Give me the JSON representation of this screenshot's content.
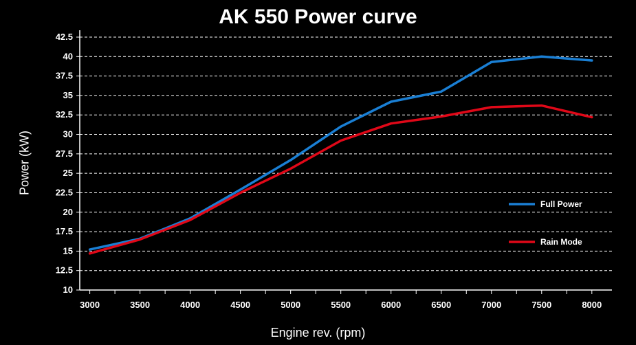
{
  "chart_data": {
    "type": "line",
    "title": "AK 550 Power curve",
    "xlabel": "Engine rev. (rpm)",
    "ylabel": "Power (kW)",
    "x": [
      3000,
      3500,
      4000,
      4500,
      5000,
      5500,
      6000,
      6500,
      7000,
      7500,
      8000
    ],
    "x_ticks": [
      "3000",
      "3500",
      "4000",
      "4500",
      "5000",
      "5500",
      "6000",
      "6500",
      "7000",
      "7500",
      "8000"
    ],
    "y_ticks": [
      "10",
      "12.5",
      "15",
      "17.5",
      "20",
      "22.5",
      "25",
      "27.5",
      "30",
      "32.5",
      "35",
      "37.5",
      "40",
      "42.5"
    ],
    "xlim": [
      2900,
      8200
    ],
    "ylim": [
      10,
      42.5
    ],
    "grid": true,
    "legend_position": "right",
    "series": [
      {
        "name": "Full Power",
        "color": "#1a7fd4",
        "values": [
          15.2,
          16.6,
          19.2,
          22.9,
          26.7,
          31.0,
          34.2,
          35.5,
          39.3,
          40.0,
          39.5
        ]
      },
      {
        "name": "Rain Mode",
        "color": "#e00818",
        "values": [
          14.7,
          16.5,
          19.0,
          22.5,
          25.6,
          29.2,
          31.4,
          32.3,
          33.5,
          33.7,
          32.2
        ]
      }
    ]
  }
}
